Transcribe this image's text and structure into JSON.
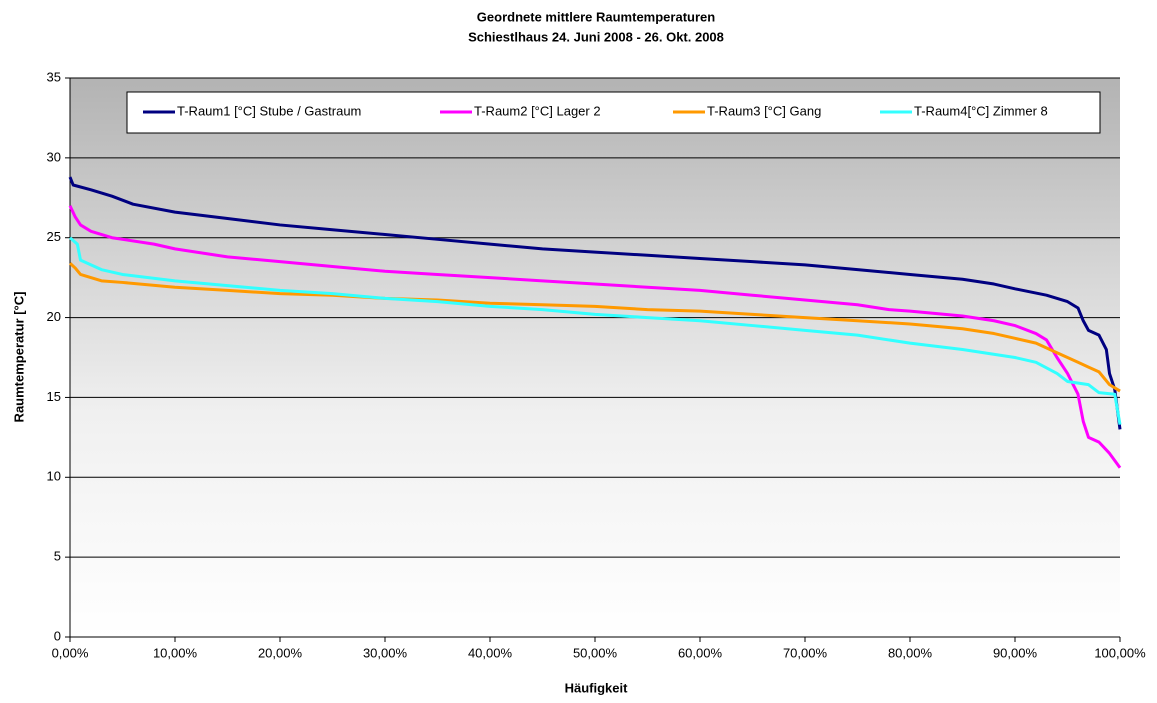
{
  "chart_data": {
    "type": "line",
    "title": "Geordnete mittlere Raumtemperaturen",
    "subtitle": "Schiestlhaus 24. Juni 2008 - 26. Okt. 2008",
    "x_label": "Häufigkeit",
    "y_label": "Raumtemperatur [°C]",
    "xlim": [
      0,
      100
    ],
    "xticks": [
      {
        "value": 0,
        "label": "0,00%"
      },
      {
        "value": 10,
        "label": "10,00%"
      },
      {
        "value": 20,
        "label": "20,00%"
      },
      {
        "value": 30,
        "label": "30,00%"
      },
      {
        "value": 40,
        "label": "40,00%"
      },
      {
        "value": 50,
        "label": "50,00%"
      },
      {
        "value": 60,
        "label": "60,00%"
      },
      {
        "value": 70,
        "label": "70,00%"
      },
      {
        "value": 80,
        "label": "80,00%"
      },
      {
        "value": 90,
        "label": "90,00%"
      },
      {
        "value": 100,
        "label": "100,00%"
      }
    ],
    "ylim": [
      0,
      35
    ],
    "yticks": [
      0,
      5,
      10,
      15,
      20,
      25,
      30,
      35
    ],
    "grid": true,
    "legend": "top",
    "series": [
      {
        "name": "T-Raum1 [°C] Stube / Gastraum",
        "color": "#000080",
        "x": [
          0,
          0.3,
          2,
          4,
          6,
          10,
          15,
          20,
          25,
          30,
          35,
          40,
          45,
          50,
          55,
          60,
          65,
          70,
          75,
          80,
          85,
          88,
          90,
          93,
          95,
          96,
          96.5,
          97,
          98,
          98.7,
          99,
          99.5,
          100
        ],
        "values": [
          28.8,
          28.3,
          28,
          27.6,
          27.1,
          26.6,
          26.2,
          25.8,
          25.5,
          25.2,
          24.9,
          24.6,
          24.3,
          24.1,
          23.9,
          23.7,
          23.5,
          23.3,
          23.0,
          22.7,
          22.4,
          22.1,
          21.8,
          21.4,
          21.0,
          20.6,
          19.8,
          19.2,
          18.9,
          18.0,
          16.5,
          15.5,
          13.0
        ]
      },
      {
        "name": "T-Raum2 [°C] Lager 2",
        "color": "#ff00ff",
        "x": [
          0,
          0.5,
          1,
          2,
          4,
          8,
          10,
          15,
          20,
          25,
          30,
          35,
          40,
          45,
          50,
          55,
          60,
          65,
          70,
          75,
          78,
          80,
          85,
          88,
          90,
          92,
          93,
          94,
          95,
          96,
          96.5,
          97,
          98,
          99,
          100
        ],
        "values": [
          27,
          26.3,
          25.8,
          25.4,
          25.0,
          24.6,
          24.3,
          23.8,
          23.5,
          23.2,
          22.9,
          22.7,
          22.5,
          22.3,
          22.1,
          21.9,
          21.7,
          21.4,
          21.1,
          20.8,
          20.5,
          20.4,
          20.1,
          19.8,
          19.5,
          19.0,
          18.6,
          17.5,
          16.5,
          15.2,
          13.5,
          12.5,
          12.2,
          11.5,
          10.6
        ]
      },
      {
        "name": "T-Raum3 [°C] Gang",
        "color": "#ff9900",
        "x": [
          0,
          0.5,
          1,
          3,
          5,
          10,
          15,
          20,
          25,
          30,
          35,
          40,
          45,
          50,
          55,
          60,
          65,
          70,
          75,
          80,
          85,
          88,
          90,
          92,
          94,
          96,
          97,
          98,
          99,
          100
        ],
        "values": [
          23.4,
          23.1,
          22.7,
          22.3,
          22.2,
          21.9,
          21.7,
          21.5,
          21.4,
          21.2,
          21.1,
          20.9,
          20.8,
          20.7,
          20.5,
          20.4,
          20.2,
          20.0,
          19.8,
          19.6,
          19.3,
          19.0,
          18.7,
          18.4,
          17.8,
          17.2,
          16.9,
          16.6,
          15.8,
          15.4
        ]
      },
      {
        "name": "T-Raum4[°C] Zimmer 8",
        "color": "#33ffff",
        "x": [
          0,
          0.7,
          1,
          3,
          5,
          10,
          15,
          20,
          25,
          30,
          35,
          40,
          45,
          50,
          55,
          60,
          65,
          70,
          75,
          80,
          85,
          90,
          92,
          94,
          95,
          97,
          98,
          99.5,
          100
        ],
        "values": [
          25,
          24.6,
          23.6,
          23.0,
          22.7,
          22.3,
          22.0,
          21.7,
          21.5,
          21.2,
          21.0,
          20.7,
          20.5,
          20.2,
          20.0,
          19.8,
          19.5,
          19.2,
          18.9,
          18.4,
          18.0,
          17.5,
          17.2,
          16.5,
          16.0,
          15.8,
          15.3,
          15.2,
          13.3
        ]
      }
    ]
  }
}
